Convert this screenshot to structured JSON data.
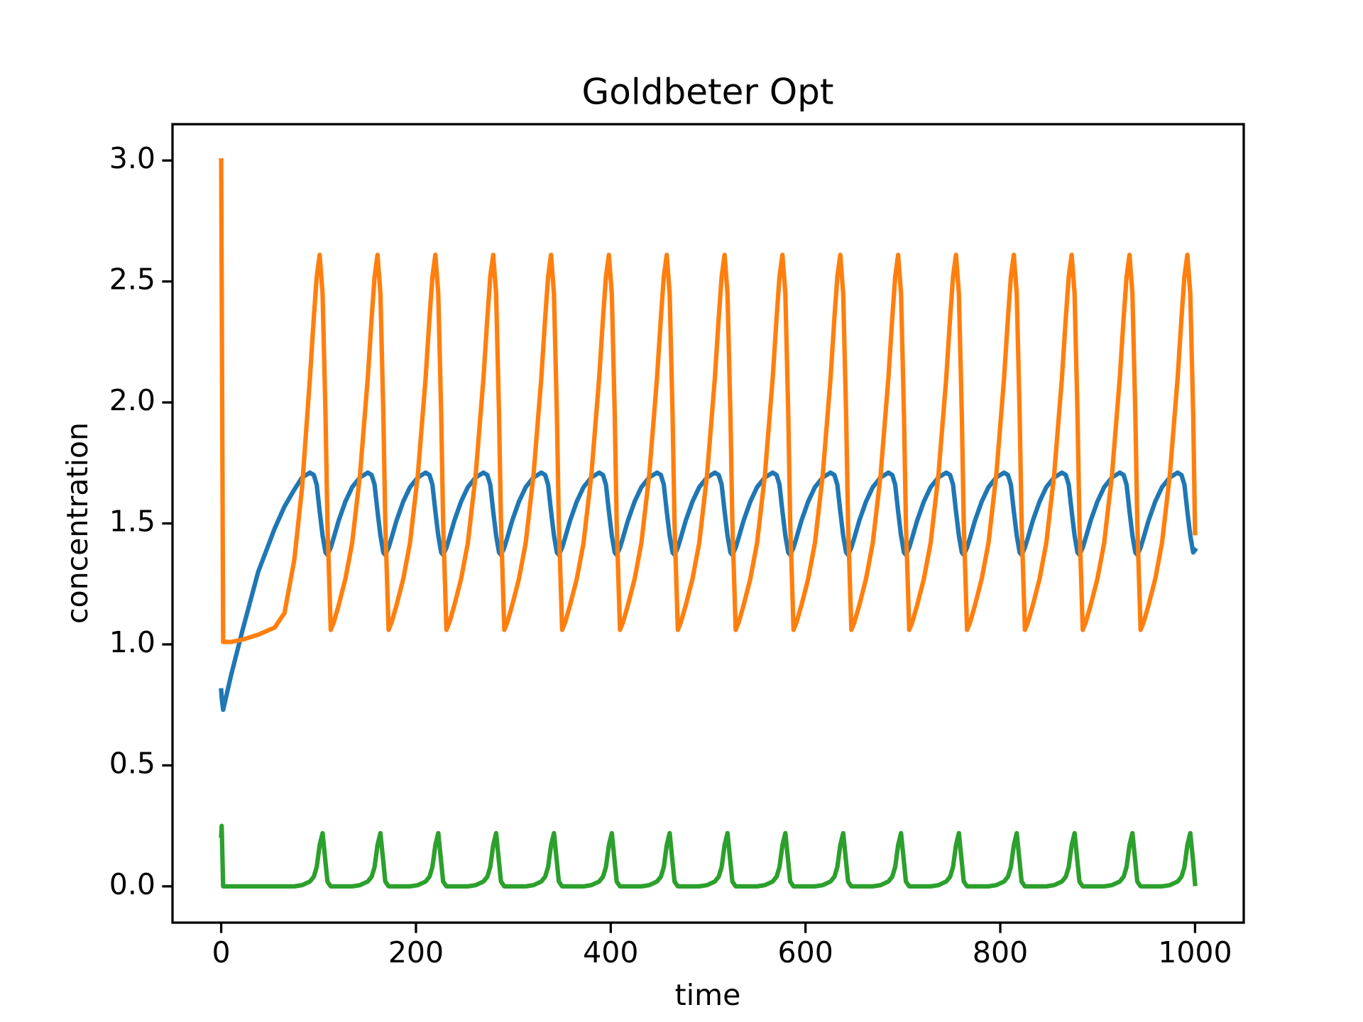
{
  "chart_data": {
    "type": "line",
    "title": "Goldbeter Opt",
    "x_label": "time",
    "y_label": "concentration",
    "x": [
      0,
      0.5,
      2,
      10,
      22,
      38,
      55,
      65,
      75.1,
      83.1,
      91.1,
      95.1,
      98.1,
      101.1,
      104.1,
      107.1,
      109.1,
      112.5,
      115.5,
      120.5,
      127.5,
      134.5,
      142.5,
      150.5,
      154.5,
      157.5,
      160.5,
      163.5,
      166.5,
      168.5,
      171.9,
      174.9,
      179.9,
      186.9,
      193.9,
      201.9,
      209.9,
      213.9,
      216.9,
      219.9,
      222.9,
      225.9,
      227.9,
      231.3,
      234.3,
      239.3,
      246.3,
      253.3,
      261.3,
      269.3,
      273.3,
      276.3,
      279.3,
      282.3,
      285.3,
      287.3,
      290.7,
      293.7,
      298.7,
      305.7,
      312.7,
      320.7,
      328.7,
      332.7,
      335.7,
      338.7,
      341.7,
      344.7,
      346.7,
      350.1,
      353.1,
      358.1,
      365.1,
      372.1,
      380.1,
      388.1,
      392.1,
      395.1,
      398.1,
      401.1,
      404.1,
      406.1,
      409.5,
      412.5,
      417.5,
      424.5,
      431.5,
      439.5,
      447.5,
      451.5,
      454.5,
      457.5,
      460.5,
      463.5,
      465.5,
      468.9,
      471.9,
      476.9,
      483.9,
      490.9,
      498.9,
      506.9,
      510.9,
      513.9,
      516.9,
      519.9,
      522.9,
      524.9,
      528.3,
      531.3,
      536.3,
      543.3,
      550.3,
      558.3,
      566.3,
      570.3,
      573.3,
      576.3,
      579.3,
      582.3,
      584.3,
      587.7,
      590.7,
      595.7,
      602.7,
      609.7,
      617.7,
      625.7,
      629.7,
      632.7,
      635.7,
      638.7,
      641.7,
      643.7,
      647.1,
      650.1,
      655.1,
      662.1,
      669.1,
      677.1,
      685.1,
      689.1,
      692.1,
      695.1,
      698.1,
      701.1,
      703.1,
      706.5,
      709.5,
      714.5,
      721.5,
      728.5,
      736.5,
      744.5,
      748.5,
      751.5,
      754.5,
      757.5,
      760.5,
      762.5,
      765.9,
      768.9,
      773.9,
      780.9,
      787.9,
      795.9,
      803.9,
      807.9,
      810.9,
      813.9,
      816.9,
      819.9,
      821.9,
      825.3,
      828.3,
      833.3,
      840.3,
      847.3,
      855.3,
      863.3,
      867.3,
      870.3,
      873.3,
      876.3,
      879.3,
      881.3,
      884.7,
      887.7,
      892.7,
      899.7,
      906.7,
      914.7,
      922.7,
      926.7,
      929.7,
      932.7,
      935.7,
      938.7,
      940.7,
      944.1,
      947.1,
      952.1,
      959.1,
      966.1,
      974.1,
      982.1,
      986.1,
      989.1,
      992.1,
      995.1,
      998.1,
      1000
    ],
    "series": [
      {
        "color": "#1f77b4",
        "values": [
          0.81,
          0.78,
          0.73,
          0.87,
          1.06,
          1.3,
          1.48,
          1.57,
          1.64,
          1.69,
          1.71,
          1.7,
          1.66,
          1.55,
          1.45,
          1.38,
          1.37,
          1.4,
          1.44,
          1.51,
          1.59,
          1.65,
          1.69,
          1.71,
          1.7,
          1.66,
          1.55,
          1.45,
          1.38,
          1.37,
          1.4,
          1.44,
          1.51,
          1.59,
          1.65,
          1.69,
          1.71,
          1.7,
          1.66,
          1.55,
          1.45,
          1.38,
          1.37,
          1.4,
          1.44,
          1.51,
          1.59,
          1.65,
          1.69,
          1.71,
          1.7,
          1.66,
          1.55,
          1.45,
          1.38,
          1.37,
          1.4,
          1.44,
          1.51,
          1.59,
          1.65,
          1.69,
          1.71,
          1.7,
          1.66,
          1.55,
          1.45,
          1.38,
          1.37,
          1.4,
          1.44,
          1.51,
          1.59,
          1.65,
          1.69,
          1.71,
          1.7,
          1.66,
          1.55,
          1.45,
          1.38,
          1.37,
          1.4,
          1.44,
          1.51,
          1.59,
          1.65,
          1.69,
          1.71,
          1.7,
          1.66,
          1.55,
          1.45,
          1.38,
          1.37,
          1.4,
          1.44,
          1.51,
          1.59,
          1.65,
          1.69,
          1.71,
          1.7,
          1.66,
          1.55,
          1.45,
          1.38,
          1.37,
          1.4,
          1.44,
          1.51,
          1.59,
          1.65,
          1.69,
          1.71,
          1.7,
          1.66,
          1.55,
          1.45,
          1.38,
          1.37,
          1.4,
          1.44,
          1.51,
          1.59,
          1.65,
          1.69,
          1.71,
          1.7,
          1.66,
          1.55,
          1.45,
          1.38,
          1.37,
          1.4,
          1.44,
          1.51,
          1.59,
          1.65,
          1.69,
          1.71,
          1.7,
          1.66,
          1.55,
          1.45,
          1.38,
          1.37,
          1.4,
          1.44,
          1.51,
          1.59,
          1.65,
          1.69,
          1.71,
          1.7,
          1.66,
          1.55,
          1.45,
          1.38,
          1.37,
          1.4,
          1.44,
          1.51,
          1.59,
          1.65,
          1.69,
          1.71,
          1.7,
          1.66,
          1.55,
          1.45,
          1.38,
          1.37,
          1.4,
          1.44,
          1.51,
          1.59,
          1.65,
          1.69,
          1.71,
          1.7,
          1.66,
          1.55,
          1.45,
          1.38,
          1.37,
          1.4,
          1.44,
          1.51,
          1.59,
          1.65,
          1.69,
          1.71,
          1.7,
          1.66,
          1.55,
          1.45,
          1.38,
          1.37,
          1.4,
          1.44,
          1.51,
          1.59,
          1.65,
          1.69,
          1.71,
          1.7,
          1.66,
          1.55,
          1.45,
          1.38,
          1.39
        ]
      },
      {
        "color": "#ff7f0e",
        "values": [
          3.0,
          2.5,
          1.01,
          1.01,
          1.02,
          1.04,
          1.07,
          1.13,
          1.35,
          1.65,
          2.1,
          2.35,
          2.52,
          2.61,
          2.45,
          1.95,
          1.5,
          1.06,
          1.09,
          1.16,
          1.27,
          1.42,
          1.7,
          2.1,
          2.35,
          2.52,
          2.61,
          2.45,
          1.95,
          1.5,
          1.06,
          1.09,
          1.16,
          1.27,
          1.42,
          1.7,
          2.1,
          2.35,
          2.52,
          2.61,
          2.45,
          1.95,
          1.5,
          1.06,
          1.09,
          1.16,
          1.27,
          1.42,
          1.7,
          2.1,
          2.35,
          2.52,
          2.61,
          2.45,
          1.95,
          1.5,
          1.06,
          1.09,
          1.16,
          1.27,
          1.42,
          1.7,
          2.1,
          2.35,
          2.52,
          2.61,
          2.45,
          1.95,
          1.5,
          1.06,
          1.09,
          1.16,
          1.27,
          1.42,
          1.7,
          2.1,
          2.35,
          2.52,
          2.61,
          2.45,
          1.95,
          1.5,
          1.06,
          1.09,
          1.16,
          1.27,
          1.42,
          1.7,
          2.1,
          2.35,
          2.52,
          2.61,
          2.45,
          1.95,
          1.5,
          1.06,
          1.09,
          1.16,
          1.27,
          1.42,
          1.7,
          2.1,
          2.35,
          2.52,
          2.61,
          2.45,
          1.95,
          1.5,
          1.06,
          1.09,
          1.16,
          1.27,
          1.42,
          1.7,
          2.1,
          2.35,
          2.52,
          2.61,
          2.45,
          1.95,
          1.5,
          1.06,
          1.09,
          1.16,
          1.27,
          1.42,
          1.7,
          2.1,
          2.35,
          2.52,
          2.61,
          2.45,
          1.95,
          1.5,
          1.06,
          1.09,
          1.16,
          1.27,
          1.42,
          1.7,
          2.1,
          2.35,
          2.52,
          2.61,
          2.45,
          1.95,
          1.5,
          1.06,
          1.09,
          1.16,
          1.27,
          1.42,
          1.7,
          2.1,
          2.35,
          2.52,
          2.61,
          2.45,
          1.95,
          1.5,
          1.06,
          1.09,
          1.16,
          1.27,
          1.42,
          1.7,
          2.1,
          2.35,
          2.52,
          2.61,
          2.45,
          1.95,
          1.5,
          1.06,
          1.09,
          1.16,
          1.27,
          1.42,
          1.7,
          2.1,
          2.35,
          2.52,
          2.61,
          2.45,
          1.95,
          1.5,
          1.06,
          1.09,
          1.16,
          1.27,
          1.42,
          1.7,
          2.1,
          2.35,
          2.52,
          2.61,
          2.45,
          1.95,
          1.5,
          1.06,
          1.09,
          1.16,
          1.27,
          1.42,
          1.7,
          2.1,
          2.35,
          2.52,
          2.61,
          2.45,
          1.95,
          1.46
        ]
      },
      {
        "color": "#2ca02c",
        "values": [
          0.21,
          0.25,
          0,
          0,
          0,
          0,
          0,
          0,
          0,
          0.005,
          0.02,
          0.04,
          0.08,
          0.17,
          0.22,
          0.1,
          0.02,
          0,
          0,
          0,
          0,
          0,
          0.005,
          0.02,
          0.04,
          0.08,
          0.17,
          0.22,
          0.1,
          0.02,
          0,
          0,
          0,
          0,
          0,
          0.005,
          0.02,
          0.04,
          0.08,
          0.17,
          0.22,
          0.1,
          0.02,
          0,
          0,
          0,
          0,
          0,
          0.005,
          0.02,
          0.04,
          0.08,
          0.17,
          0.22,
          0.1,
          0.02,
          0,
          0,
          0,
          0,
          0,
          0.005,
          0.02,
          0.04,
          0.08,
          0.17,
          0.22,
          0.1,
          0.02,
          0,
          0,
          0,
          0,
          0,
          0.005,
          0.02,
          0.04,
          0.08,
          0.17,
          0.22,
          0.1,
          0.02,
          0,
          0,
          0,
          0,
          0,
          0.005,
          0.02,
          0.04,
          0.08,
          0.17,
          0.22,
          0.1,
          0.02,
          0,
          0,
          0,
          0,
          0,
          0.005,
          0.02,
          0.04,
          0.08,
          0.17,
          0.22,
          0.1,
          0.02,
          0,
          0,
          0,
          0,
          0,
          0.005,
          0.02,
          0.04,
          0.08,
          0.17,
          0.22,
          0.1,
          0.02,
          0,
          0,
          0,
          0,
          0,
          0.005,
          0.02,
          0.04,
          0.08,
          0.17,
          0.22,
          0.1,
          0.02,
          0,
          0,
          0,
          0,
          0,
          0.005,
          0.02,
          0.04,
          0.08,
          0.17,
          0.22,
          0.1,
          0.02,
          0,
          0,
          0,
          0,
          0,
          0.005,
          0.02,
          0.04,
          0.08,
          0.17,
          0.22,
          0.1,
          0.02,
          0,
          0,
          0,
          0,
          0,
          0.005,
          0.02,
          0.04,
          0.08,
          0.17,
          0.22,
          0.1,
          0.02,
          0,
          0,
          0,
          0,
          0,
          0.005,
          0.02,
          0.04,
          0.08,
          0.17,
          0.22,
          0.1,
          0.02,
          0,
          0,
          0,
          0,
          0,
          0.005,
          0.02,
          0.04,
          0.08,
          0.17,
          0.22,
          0.1,
          0.02,
          0,
          0,
          0,
          0,
          0,
          0.005,
          0.02,
          0.04,
          0.08,
          0.17,
          0.22,
          0.1,
          0.01
        ]
      }
    ],
    "xlim": [
      -50,
      1050
    ],
    "ylim": [
      -0.15,
      3.15
    ],
    "xticks": [
      0,
      200,
      400,
      600,
      800,
      1000
    ],
    "yticks": [
      {
        "value": 0,
        "label": "0.0"
      },
      0.5,
      {
        "value": 1,
        "label": "1.0"
      },
      1.5,
      {
        "value": 2,
        "label": "2.0"
      },
      2.5,
      {
        "value": 3,
        "label": "3.0"
      }
    ],
    "grid": false
  }
}
